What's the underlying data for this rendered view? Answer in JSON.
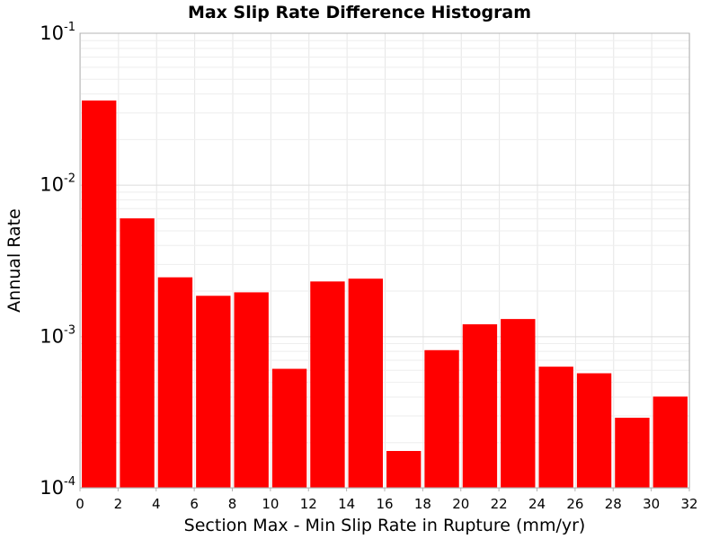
{
  "chart_data": {
    "type": "bar",
    "title": "Max Slip Rate Difference Histogram",
    "xlabel": "Section Max - Min Slip Rate in Rupture (mm/yr)",
    "ylabel": "Annual Rate",
    "y_scale": "log",
    "grid": true,
    "xlim": [
      0,
      32
    ],
    "ylim": [
      0.0001,
      0.1
    ],
    "bin_width": 2,
    "x_ticks": [
      0,
      2,
      4,
      6,
      8,
      10,
      12,
      14,
      16,
      18,
      20,
      22,
      24,
      26,
      28,
      30,
      32
    ],
    "x_tick_labels": [
      "0",
      "2",
      "4",
      "6",
      "8",
      "10",
      "12",
      "14",
      "16",
      "18",
      "20",
      "22",
      "24",
      "26",
      "28",
      "30",
      "32"
    ],
    "y_ticks": [
      {
        "value": 0.1,
        "base": "10",
        "exp": "-1"
      },
      {
        "value": 0.01,
        "base": "10",
        "exp": "-2"
      },
      {
        "value": 0.001,
        "base": "10",
        "exp": "-3"
      },
      {
        "value": 0.0001,
        "base": "10",
        "exp": "-4"
      }
    ],
    "bar_color": "#ff0000",
    "bins": [
      0,
      2,
      4,
      6,
      8,
      10,
      12,
      14,
      16,
      18,
      20,
      22,
      24,
      26,
      28,
      30
    ],
    "values": [
      0.036,
      0.006,
      0.00245,
      0.00185,
      0.00195,
      0.00061,
      0.0023,
      0.0024,
      0.000175,
      0.00081,
      0.0012,
      0.0013,
      0.00063,
      0.00057,
      0.00029,
      0.0004
    ]
  }
}
